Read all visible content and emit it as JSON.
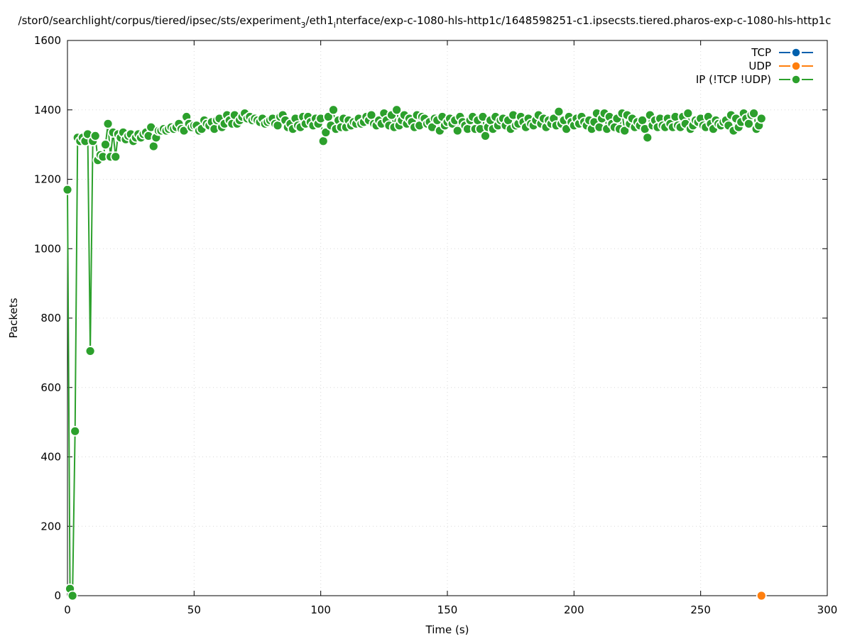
{
  "chart_data": {
    "type": "line",
    "title": "/stor0/searchlight/corpus/tiered/ipsec/sts/experiment",
    "title_sub": "3",
    "title_mid": "/eth1",
    "title_sub2": "i",
    "title_tail": "nterface/exp-c-1080-hls-http1c/1648598251-c1.ipsecsts.tiered.pharos-exp-c-1080-hls-http1c",
    "xlabel": "Time (s)",
    "ylabel": "Packets",
    "xlim": [
      0,
      300
    ],
    "ylim": [
      0,
      1600
    ],
    "x_ticks": [
      "0",
      "50",
      "100",
      "150",
      "200",
      "250",
      "300"
    ],
    "y_ticks": [
      "0",
      "200",
      "400",
      "600",
      "800",
      "1000",
      "1200",
      "1400",
      "1600"
    ],
    "grid": true,
    "legend_position": "top-right",
    "series": [
      {
        "name": "TCP",
        "color": "#0060ad",
        "points": []
      },
      {
        "name": "UDP",
        "color": "#ff7f0e",
        "points": [
          [
            274,
            0
          ]
        ]
      },
      {
        "name": "IP (!TCP  !UDP)",
        "color": "#2ca02c",
        "points": [
          [
            0,
            1170
          ],
          [
            1,
            20
          ],
          [
            2,
            0
          ],
          [
            3,
            474
          ],
          [
            4,
            1320
          ],
          [
            5,
            1310
          ],
          [
            6,
            1320
          ],
          [
            7,
            1310
          ],
          [
            8,
            1330
          ],
          [
            9,
            705
          ],
          [
            10,
            1310
          ],
          [
            11,
            1325
          ],
          [
            12,
            1255
          ],
          [
            13,
            1270
          ],
          [
            14,
            1265
          ],
          [
            15,
            1300
          ],
          [
            16,
            1360
          ],
          [
            17,
            1265
          ],
          [
            18,
            1335
          ],
          [
            19,
            1265
          ],
          [
            20,
            1330
          ],
          [
            21,
            1320
          ],
          [
            22,
            1335
          ],
          [
            23,
            1315
          ],
          [
            24,
            1325
          ],
          [
            25,
            1330
          ],
          [
            26,
            1310
          ],
          [
            27,
            1320
          ],
          [
            28,
            1330
          ],
          [
            29,
            1320
          ],
          [
            30,
            1330
          ],
          [
            31,
            1335
          ],
          [
            32,
            1325
          ],
          [
            33,
            1350
          ],
          [
            34,
            1295
          ],
          [
            35,
            1320
          ],
          [
            36,
            1340
          ],
          [
            37,
            1340
          ],
          [
            38,
            1345
          ],
          [
            39,
            1340
          ],
          [
            40,
            1345
          ],
          [
            41,
            1350
          ],
          [
            42,
            1345
          ],
          [
            43,
            1350
          ],
          [
            44,
            1360
          ],
          [
            45,
            1345
          ],
          [
            46,
            1340
          ],
          [
            47,
            1380
          ],
          [
            48,
            1360
          ],
          [
            49,
            1350
          ],
          [
            50,
            1355
          ],
          [
            51,
            1355
          ],
          [
            52,
            1340
          ],
          [
            53,
            1345
          ],
          [
            54,
            1370
          ],
          [
            55,
            1360
          ],
          [
            56,
            1355
          ],
          [
            57,
            1365
          ],
          [
            58,
            1345
          ],
          [
            59,
            1370
          ],
          [
            60,
            1375
          ],
          [
            61,
            1350
          ],
          [
            62,
            1360
          ],
          [
            63,
            1385
          ],
          [
            64,
            1370
          ],
          [
            65,
            1360
          ],
          [
            66,
            1385
          ],
          [
            67,
            1360
          ],
          [
            68,
            1370
          ],
          [
            69,
            1380
          ],
          [
            70,
            1390
          ],
          [
            71,
            1375
          ],
          [
            72,
            1380
          ],
          [
            73,
            1370
          ],
          [
            74,
            1375
          ],
          [
            75,
            1370
          ],
          [
            76,
            1365
          ],
          [
            77,
            1375
          ],
          [
            78,
            1360
          ],
          [
            79,
            1365
          ],
          [
            80,
            1370
          ],
          [
            81,
            1375
          ],
          [
            82,
            1360
          ],
          [
            83,
            1355
          ],
          [
            84,
            1380
          ],
          [
            85,
            1385
          ],
          [
            86,
            1370
          ],
          [
            87,
            1350
          ],
          [
            88,
            1360
          ],
          [
            89,
            1345
          ],
          [
            90,
            1375
          ],
          [
            91,
            1355
          ],
          [
            92,
            1350
          ],
          [
            93,
            1380
          ],
          [
            94,
            1360
          ],
          [
            95,
            1380
          ],
          [
            96,
            1365
          ],
          [
            97,
            1355
          ],
          [
            98,
            1375
          ],
          [
            99,
            1360
          ],
          [
            100,
            1375
          ],
          [
            101,
            1310
          ],
          [
            102,
            1335
          ],
          [
            103,
            1380
          ],
          [
            104,
            1355
          ],
          [
            105,
            1400
          ],
          [
            106,
            1345
          ],
          [
            107,
            1370
          ],
          [
            108,
            1350
          ],
          [
            109,
            1375
          ],
          [
            110,
            1350
          ],
          [
            111,
            1370
          ],
          [
            112,
            1355
          ],
          [
            113,
            1365
          ],
          [
            114,
            1360
          ],
          [
            115,
            1375
          ],
          [
            116,
            1360
          ],
          [
            117,
            1365
          ],
          [
            118,
            1380
          ],
          [
            119,
            1370
          ],
          [
            120,
            1385
          ],
          [
            121,
            1360
          ],
          [
            122,
            1355
          ],
          [
            123,
            1370
          ],
          [
            124,
            1360
          ],
          [
            125,
            1390
          ],
          [
            126,
            1370
          ],
          [
            127,
            1355
          ],
          [
            128,
            1385
          ],
          [
            129,
            1350
          ],
          [
            130,
            1400
          ],
          [
            131,
            1355
          ],
          [
            132,
            1370
          ],
          [
            133,
            1385
          ],
          [
            134,
            1360
          ],
          [
            135,
            1375
          ],
          [
            136,
            1365
          ],
          [
            137,
            1350
          ],
          [
            138,
            1385
          ],
          [
            139,
            1355
          ],
          [
            140,
            1380
          ],
          [
            141,
            1375
          ],
          [
            142,
            1360
          ],
          [
            143,
            1365
          ],
          [
            144,
            1350
          ],
          [
            145,
            1375
          ],
          [
            146,
            1370
          ],
          [
            147,
            1340
          ],
          [
            148,
            1380
          ],
          [
            149,
            1355
          ],
          [
            150,
            1365
          ],
          [
            151,
            1375
          ],
          [
            152,
            1360
          ],
          [
            153,
            1370
          ],
          [
            154,
            1340
          ],
          [
            155,
            1380
          ],
          [
            156,
            1365
          ],
          [
            157,
            1355
          ],
          [
            158,
            1345
          ],
          [
            159,
            1370
          ],
          [
            160,
            1380
          ],
          [
            161,
            1345
          ],
          [
            162,
            1370
          ],
          [
            163,
            1345
          ],
          [
            164,
            1380
          ],
          [
            165,
            1325
          ],
          [
            166,
            1350
          ],
          [
            167,
            1370
          ],
          [
            168,
            1345
          ],
          [
            169,
            1380
          ],
          [
            170,
            1355
          ],
          [
            171,
            1370
          ],
          [
            172,
            1375
          ],
          [
            173,
            1355
          ],
          [
            174,
            1370
          ],
          [
            175,
            1345
          ],
          [
            176,
            1385
          ],
          [
            177,
            1355
          ],
          [
            178,
            1360
          ],
          [
            179,
            1380
          ],
          [
            180,
            1365
          ],
          [
            181,
            1350
          ],
          [
            182,
            1375
          ],
          [
            183,
            1360
          ],
          [
            184,
            1355
          ],
          [
            185,
            1370
          ],
          [
            186,
            1385
          ],
          [
            187,
            1360
          ],
          [
            188,
            1375
          ],
          [
            189,
            1350
          ],
          [
            190,
            1370
          ],
          [
            191,
            1360
          ],
          [
            192,
            1375
          ],
          [
            193,
            1355
          ],
          [
            194,
            1395
          ],
          [
            195,
            1360
          ],
          [
            196,
            1370
          ],
          [
            197,
            1345
          ],
          [
            198,
            1380
          ],
          [
            199,
            1365
          ],
          [
            200,
            1355
          ],
          [
            201,
            1375
          ],
          [
            202,
            1360
          ],
          [
            203,
            1380
          ],
          [
            204,
            1365
          ],
          [
            205,
            1355
          ],
          [
            206,
            1370
          ],
          [
            207,
            1345
          ],
          [
            208,
            1365
          ],
          [
            209,
            1390
          ],
          [
            210,
            1350
          ],
          [
            211,
            1375
          ],
          [
            212,
            1390
          ],
          [
            213,
            1345
          ],
          [
            214,
            1380
          ],
          [
            215,
            1360
          ],
          [
            216,
            1350
          ],
          [
            217,
            1375
          ],
          [
            218,
            1345
          ],
          [
            219,
            1390
          ],
          [
            220,
            1340
          ],
          [
            221,
            1385
          ],
          [
            222,
            1360
          ],
          [
            223,
            1375
          ],
          [
            224,
            1350
          ],
          [
            225,
            1365
          ],
          [
            226,
            1355
          ],
          [
            227,
            1370
          ],
          [
            228,
            1345
          ],
          [
            229,
            1320
          ],
          [
            230,
            1385
          ],
          [
            231,
            1355
          ],
          [
            232,
            1370
          ],
          [
            233,
            1350
          ],
          [
            234,
            1375
          ],
          [
            235,
            1355
          ],
          [
            236,
            1350
          ],
          [
            237,
            1375
          ],
          [
            238,
            1360
          ],
          [
            239,
            1350
          ],
          [
            240,
            1380
          ],
          [
            241,
            1355
          ],
          [
            242,
            1350
          ],
          [
            243,
            1380
          ],
          [
            244,
            1360
          ],
          [
            245,
            1390
          ],
          [
            246,
            1345
          ],
          [
            247,
            1355
          ],
          [
            248,
            1370
          ],
          [
            249,
            1365
          ],
          [
            250,
            1375
          ],
          [
            251,
            1355
          ],
          [
            252,
            1350
          ],
          [
            253,
            1380
          ],
          [
            254,
            1360
          ],
          [
            255,
            1345
          ],
          [
            256,
            1370
          ],
          [
            257,
            1360
          ],
          [
            258,
            1355
          ],
          [
            259,
            1365
          ],
          [
            260,
            1370
          ],
          [
            261,
            1355
          ],
          [
            262,
            1385
          ],
          [
            263,
            1340
          ],
          [
            264,
            1375
          ],
          [
            265,
            1350
          ],
          [
            266,
            1365
          ],
          [
            267,
            1390
          ],
          [
            268,
            1375
          ],
          [
            269,
            1360
          ],
          [
            270,
            1385
          ],
          [
            271,
            1390
          ],
          [
            272,
            1345
          ],
          [
            273,
            1355
          ],
          [
            274,
            1375
          ]
        ]
      }
    ]
  }
}
